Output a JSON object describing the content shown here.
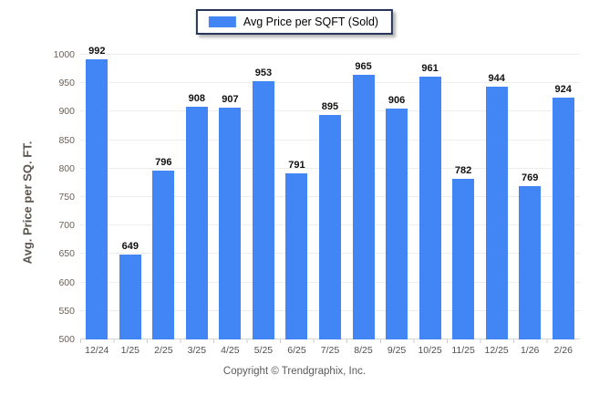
{
  "legend": {
    "label": "Avg Price per SQFT (Sold)",
    "swatch_color": "#4285f4"
  },
  "footer": {
    "copyright": "Copyright © Trendgraphix, Inc."
  },
  "colors": {
    "bar": "#4285f4",
    "legend_border": "#27355a",
    "gridline": "#ededed",
    "baseline": "#d6d6d6",
    "y_tick_text": "#6b6054",
    "x_tick_text": "#514f52",
    "value_label_text": "#111111",
    "axis_title_text": "#5a544c",
    "footer_text": "#595959"
  },
  "chart_data": {
    "type": "bar",
    "title": "",
    "xlabel": "",
    "ylabel": "Avg. Price per SQ. FT.",
    "categories": [
      "12/24",
      "1/25",
      "2/25",
      "3/25",
      "4/25",
      "5/25",
      "6/25",
      "7/25",
      "8/25",
      "9/25",
      "10/25",
      "11/25",
      "12/25",
      "1/26",
      "2/26"
    ],
    "series": [
      {
        "name": "Avg Price per SQFT (Sold)",
        "values": [
          992,
          649,
          796,
          908,
          907,
          953,
          791,
          895,
          965,
          906,
          961,
          782,
          944,
          769,
          924
        ]
      }
    ],
    "ylim": [
      500,
      1000
    ],
    "ytick_step": 50,
    "grid": true,
    "legend_position": "top-center",
    "data_labels": true
  }
}
